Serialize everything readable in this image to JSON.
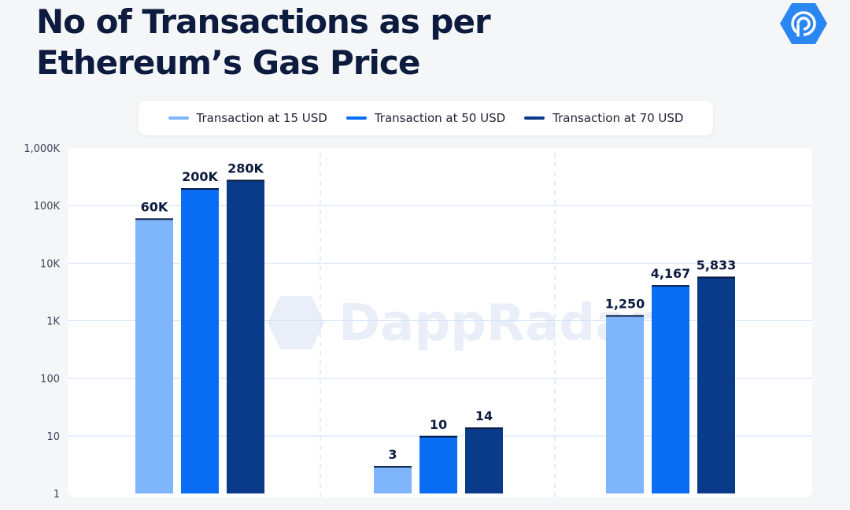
{
  "header": {
    "title": "No of Transactions as per Ethereum’s Gas Price",
    "logo_icon": "dappradar-logo-icon"
  },
  "watermark": {
    "text": "DappRadar",
    "icon": "dappradar-logo-icon"
  },
  "colors": {
    "title": "#0d1b3e",
    "series": [
      "#7fb6fb",
      "#0a6ef5",
      "#0a3a8a"
    ],
    "logo": "#2a86f0",
    "grid": "#cfe1f7"
  },
  "chart_data": {
    "type": "bar",
    "title": "No of Transactions as per Ethereum’s Gas Price",
    "yscale": "log",
    "ylim": [
      1,
      1000000
    ],
    "yticks": [
      1,
      10,
      100,
      1000,
      10000,
      100000,
      1000000
    ],
    "ytick_labels": [
      "1",
      "10",
      "100",
      "1K",
      "10K",
      "100K",
      "1,000K"
    ],
    "categories": [
      "",
      "",
      ""
    ],
    "legend_position": "top",
    "grid": true,
    "series": [
      {
        "name": "Transaction at 15 USD",
        "values": [
          60000,
          3,
          1250
        ],
        "labels": [
          "60K",
          "3",
          "1,250"
        ]
      },
      {
        "name": "Transaction at 50 USD",
        "values": [
          200000,
          10,
          4167
        ],
        "labels": [
          "200K",
          "10",
          "4,167"
        ]
      },
      {
        "name": "Transaction at 70 USD",
        "values": [
          280000,
          14,
          5833
        ],
        "labels": [
          "280K",
          "14",
          "5,833"
        ]
      }
    ]
  }
}
